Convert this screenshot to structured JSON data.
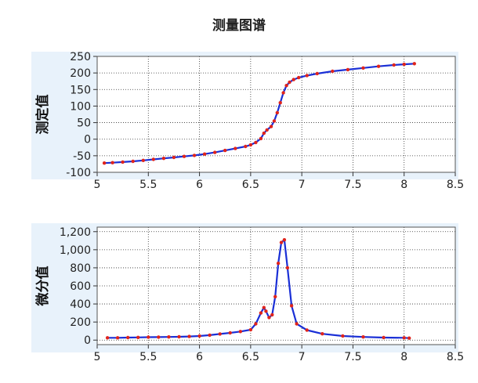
{
  "page": {
    "title": "测量图谱"
  },
  "colors": {
    "line": "#1a2fd6",
    "marker": "#e0241c",
    "panel_bg": "#e8f2fb",
    "grid": "#333333"
  },
  "chart_data": [
    {
      "type": "line",
      "ylabel": "测定值",
      "xlim": [
        5,
        8.5
      ],
      "ylim": [
        -100,
        250
      ],
      "xticks": [
        "5",
        "5.5",
        "6",
        "6.5",
        "7",
        "7.5",
        "8",
        "8.5"
      ],
      "yticks": [
        "250",
        "200",
        "150",
        "100",
        "50",
        "0",
        "-50",
        "-100"
      ],
      "grid": true,
      "series": [
        {
          "marker": "dot",
          "x": [
            5.07,
            5.15,
            5.25,
            5.35,
            5.45,
            5.55,
            5.65,
            5.75,
            5.85,
            5.95,
            6.05,
            6.15,
            6.25,
            6.35,
            6.45,
            6.5,
            6.55,
            6.6,
            6.63,
            6.66,
            6.7,
            6.73,
            6.76,
            6.79,
            6.82,
            6.85,
            6.88,
            6.92,
            6.97,
            7.05,
            7.15,
            7.3,
            7.45,
            7.6,
            7.75,
            7.9,
            8.0,
            8.1
          ],
          "y": [
            -72,
            -71,
            -69,
            -67,
            -64,
            -61,
            -58,
            -55,
            -52,
            -49,
            -45,
            -40,
            -34,
            -28,
            -22,
            -17,
            -10,
            2,
            18,
            28,
            38,
            55,
            80,
            110,
            140,
            162,
            172,
            180,
            186,
            192,
            198,
            205,
            210,
            215,
            220,
            224,
            226,
            228
          ]
        }
      ]
    },
    {
      "type": "line",
      "ylabel": "微分值",
      "xlim": [
        5,
        8.5
      ],
      "ylim": [
        -50,
        1250
      ],
      "xticks": [
        "5",
        "5.5",
        "6",
        "6.5",
        "7",
        "7.5",
        "8",
        "8.5"
      ],
      "yticks": [
        "1,200",
        "1,000",
        "800",
        "600",
        "400",
        "200",
        "0"
      ],
      "grid": true,
      "series": [
        {
          "marker": "dot",
          "x": [
            5.1,
            5.2,
            5.3,
            5.4,
            5.5,
            5.6,
            5.7,
            5.8,
            5.9,
            6.0,
            6.1,
            6.2,
            6.3,
            6.4,
            6.5,
            6.55,
            6.6,
            6.63,
            6.65,
            6.68,
            6.71,
            6.74,
            6.77,
            6.8,
            6.83,
            6.86,
            6.9,
            6.95,
            7.05,
            7.2,
            7.4,
            7.6,
            7.8,
            8.0,
            8.05
          ],
          "y": [
            25,
            25,
            28,
            30,
            32,
            33,
            35,
            37,
            40,
            45,
            55,
            68,
            80,
            95,
            115,
            180,
            300,
            360,
            320,
            250,
            280,
            480,
            850,
            1080,
            1110,
            800,
            380,
            180,
            110,
            70,
            45,
            35,
            28,
            25,
            22
          ]
        }
      ]
    }
  ]
}
